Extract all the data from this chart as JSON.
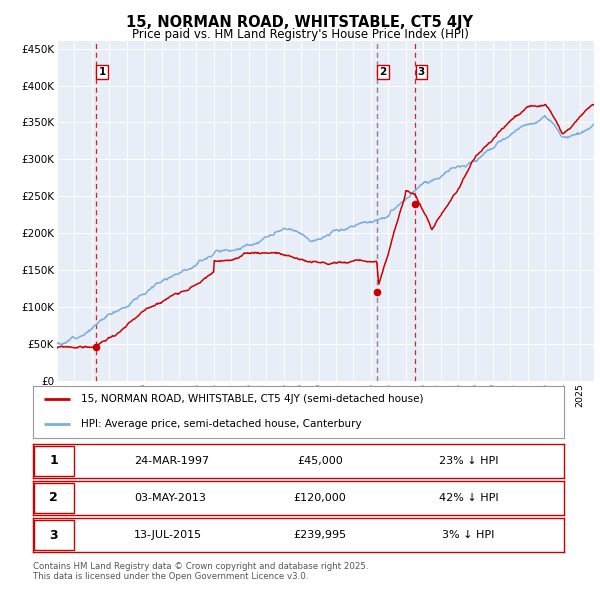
{
  "title": "15, NORMAN ROAD, WHITSTABLE, CT5 4JY",
  "subtitle": "Price paid vs. HM Land Registry's House Price Index (HPI)",
  "property_label": "15, NORMAN ROAD, WHITSTABLE, CT5 4JY (semi-detached house)",
  "hpi_label": "HPI: Average price, semi-detached house, Canterbury",
  "transactions": [
    {
      "num": 1,
      "date": "24-MAR-1997",
      "price": 45000,
      "pct": "23%",
      "dir": "↓",
      "year": 1997.22
    },
    {
      "num": 2,
      "date": "03-MAY-2013",
      "price": 120000,
      "pct": "42%",
      "dir": "↓",
      "year": 2013.34
    },
    {
      "num": 3,
      "date": "13-JUL-2015",
      "price": 239995,
      "pct": "3%",
      "dir": "↓",
      "year": 2015.54
    }
  ],
  "property_color": "#cc0000",
  "hpi_color": "#7aaedc",
  "background_color": "#e8eef8",
  "grid_color": "#ffffff",
  "ylim": [
    0,
    460000
  ],
  "yticks": [
    0,
    50000,
    100000,
    150000,
    200000,
    250000,
    300000,
    350000,
    400000,
    450000
  ],
  "xlim_start": 1995.0,
  "xlim_end": 2025.8,
  "footer": "Contains HM Land Registry data © Crown copyright and database right 2025.\nThis data is licensed under the Open Government Licence v3.0."
}
